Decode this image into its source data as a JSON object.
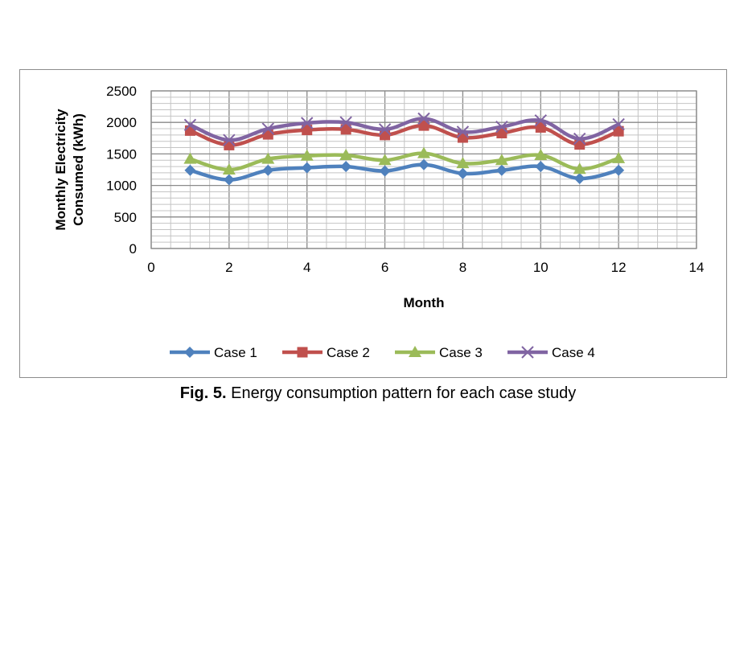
{
  "caption": {
    "label": "Fig. 5.",
    "text": " Energy consumption pattern for each case study"
  },
  "chart_data": {
    "type": "line",
    "xlabel": "Month",
    "ylabel_lines": [
      "Monthly Electricity",
      "Consumed (kWh)"
    ],
    "xlim": [
      0,
      14
    ],
    "ylim": [
      0,
      2500
    ],
    "x_ticks": [
      0,
      2,
      4,
      6,
      8,
      10,
      12,
      14
    ],
    "y_ticks": [
      0,
      500,
      1000,
      1500,
      2000,
      2500
    ],
    "grid": true,
    "legend_position": "bottom",
    "x": [
      1,
      2,
      3,
      4,
      5,
      6,
      7,
      8,
      9,
      10,
      11,
      12
    ],
    "series": [
      {
        "name": "Case 1",
        "color": "#4f81bd",
        "marker": "diamond",
        "values": [
          1240,
          1090,
          1240,
          1280,
          1300,
          1230,
          1330,
          1190,
          1240,
          1300,
          1110,
          1240
        ]
      },
      {
        "name": "Case 2",
        "color": "#c0504d",
        "marker": "square",
        "values": [
          1870,
          1640,
          1810,
          1880,
          1890,
          1800,
          1950,
          1760,
          1830,
          1920,
          1650,
          1860
        ]
      },
      {
        "name": "Case 3",
        "color": "#9bbb59",
        "marker": "triangle",
        "values": [
          1420,
          1250,
          1420,
          1470,
          1480,
          1400,
          1510,
          1350,
          1400,
          1480,
          1260,
          1430
        ]
      },
      {
        "name": "Case 4",
        "color": "#8064a2",
        "marker": "x",
        "values": [
          1960,
          1720,
          1900,
          1990,
          2000,
          1890,
          2060,
          1850,
          1930,
          2030,
          1740,
          1970
        ]
      }
    ]
  }
}
